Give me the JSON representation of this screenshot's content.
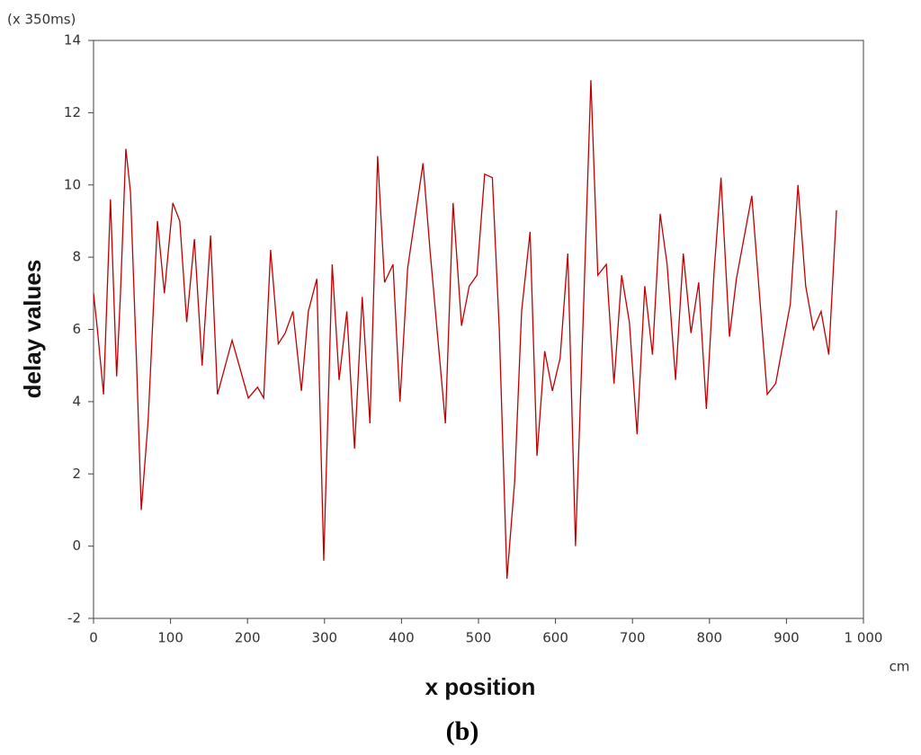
{
  "chart_data": {
    "type": "line",
    "y_unit": "(x 350ms)",
    "x_unit": "cm",
    "x_label": "x position",
    "y_label": "delay values",
    "caption": "(b)",
    "xlim": [
      0,
      1000
    ],
    "xticks": [
      0,
      100,
      200,
      300,
      400,
      500,
      600,
      700,
      800,
      900,
      {
        "value": 1000,
        "label": "1 000"
      }
    ],
    "ylim": [
      -2,
      14
    ],
    "yticks": [
      -2,
      0,
      2,
      4,
      6,
      8,
      10,
      12,
      14
    ],
    "x": [
      0,
      5,
      13,
      22,
      30,
      35,
      42,
      48,
      56,
      62,
      71,
      83,
      92,
      103,
      112,
      121,
      131,
      141,
      152,
      161,
      180,
      201,
      213,
      221,
      230,
      240,
      249,
      259,
      270,
      279,
      290,
      299,
      310,
      319,
      329,
      339,
      349,
      359,
      369,
      378,
      389,
      398,
      408,
      428,
      437,
      447,
      457,
      467,
      478,
      488,
      498,
      508,
      518,
      527,
      537,
      547,
      556,
      567,
      576,
      586,
      596,
      606,
      616,
      626,
      636,
      646,
      655,
      666,
      676,
      686,
      696,
      706,
      716,
      726,
      736,
      745,
      756,
      766,
      776,
      786,
      796,
      806,
      815,
      826,
      835,
      855,
      875,
      886,
      905,
      915,
      925,
      935,
      945,
      955,
      965
    ],
    "series": [
      {
        "name": "delay",
        "color": "#c00000",
        "values": [
          7.0,
          6.0,
          4.2,
          9.6,
          4.7,
          7.0,
          11.0,
          9.8,
          5.0,
          1.0,
          3.5,
          9.0,
          7.0,
          9.5,
          9.0,
          6.2,
          8.5,
          5.0,
          8.6,
          4.2,
          5.7,
          4.1,
          4.4,
          4.1,
          8.2,
          5.6,
          5.9,
          6.5,
          4.3,
          6.5,
          7.4,
          -0.4,
          7.8,
          4.6,
          6.5,
          2.7,
          6.9,
          3.4,
          10.8,
          7.3,
          7.8,
          4.0,
          7.7,
          10.6,
          8.2,
          5.8,
          3.4,
          9.5,
          6.1,
          7.2,
          7.5,
          10.3,
          10.2,
          6.0,
          -0.9,
          1.8,
          6.5,
          8.7,
          2.5,
          5.4,
          4.3,
          5.2,
          8.1,
          0.0,
          6.3,
          12.9,
          7.5,
          7.8,
          4.5,
          7.5,
          6.2,
          3.1,
          7.2,
          5.3,
          9.2,
          7.8,
          4.6,
          8.1,
          5.9,
          7.3,
          3.8,
          7.6,
          10.2,
          5.8,
          7.4,
          9.7,
          4.2,
          4.5,
          6.7,
          10.0,
          7.2,
          6.0,
          6.5,
          5.3,
          9.3
        ]
      }
    ]
  }
}
